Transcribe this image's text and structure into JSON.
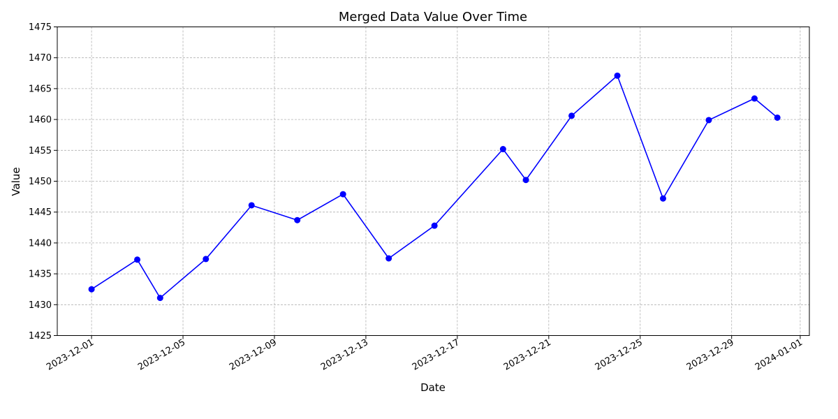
{
  "chart_data": {
    "type": "line",
    "title": "Merged Data Value Over Time",
    "xlabel": "Date",
    "ylabel": "Value",
    "ylim": [
      1425,
      1475
    ],
    "xlim": [
      "2023-11-30",
      "2024-01-01"
    ],
    "y_ticks": [
      1425,
      1430,
      1435,
      1440,
      1445,
      1450,
      1455,
      1460,
      1465,
      1470,
      1475
    ],
    "x_ticks": [
      "2023-12-01",
      "2023-12-05",
      "2023-12-09",
      "2023-12-13",
      "2023-12-17",
      "2023-12-21",
      "2023-12-25",
      "2023-12-29",
      "2024-01-01"
    ],
    "grid": true,
    "line_color": "#0000ff",
    "marker": "circle",
    "series": [
      {
        "x": [
          "2023-12-01",
          "2023-12-03",
          "2023-12-04",
          "2023-12-06",
          "2023-12-08",
          "2023-12-10",
          "2023-12-12",
          "2023-12-14",
          "2023-12-16",
          "2023-12-19",
          "2023-12-20",
          "2023-12-22",
          "2023-12-24",
          "2023-12-26",
          "2023-12-28",
          "2023-12-30",
          "2023-12-31"
        ],
        "values": [
          1432.5,
          1437.3,
          1431.1,
          1437.4,
          1446.1,
          1443.7,
          1447.9,
          1437.5,
          1442.8,
          1455.2,
          1450.2,
          1460.6,
          1467.1,
          1447.2,
          1459.9,
          1463.4,
          1460.3
        ]
      }
    ]
  }
}
